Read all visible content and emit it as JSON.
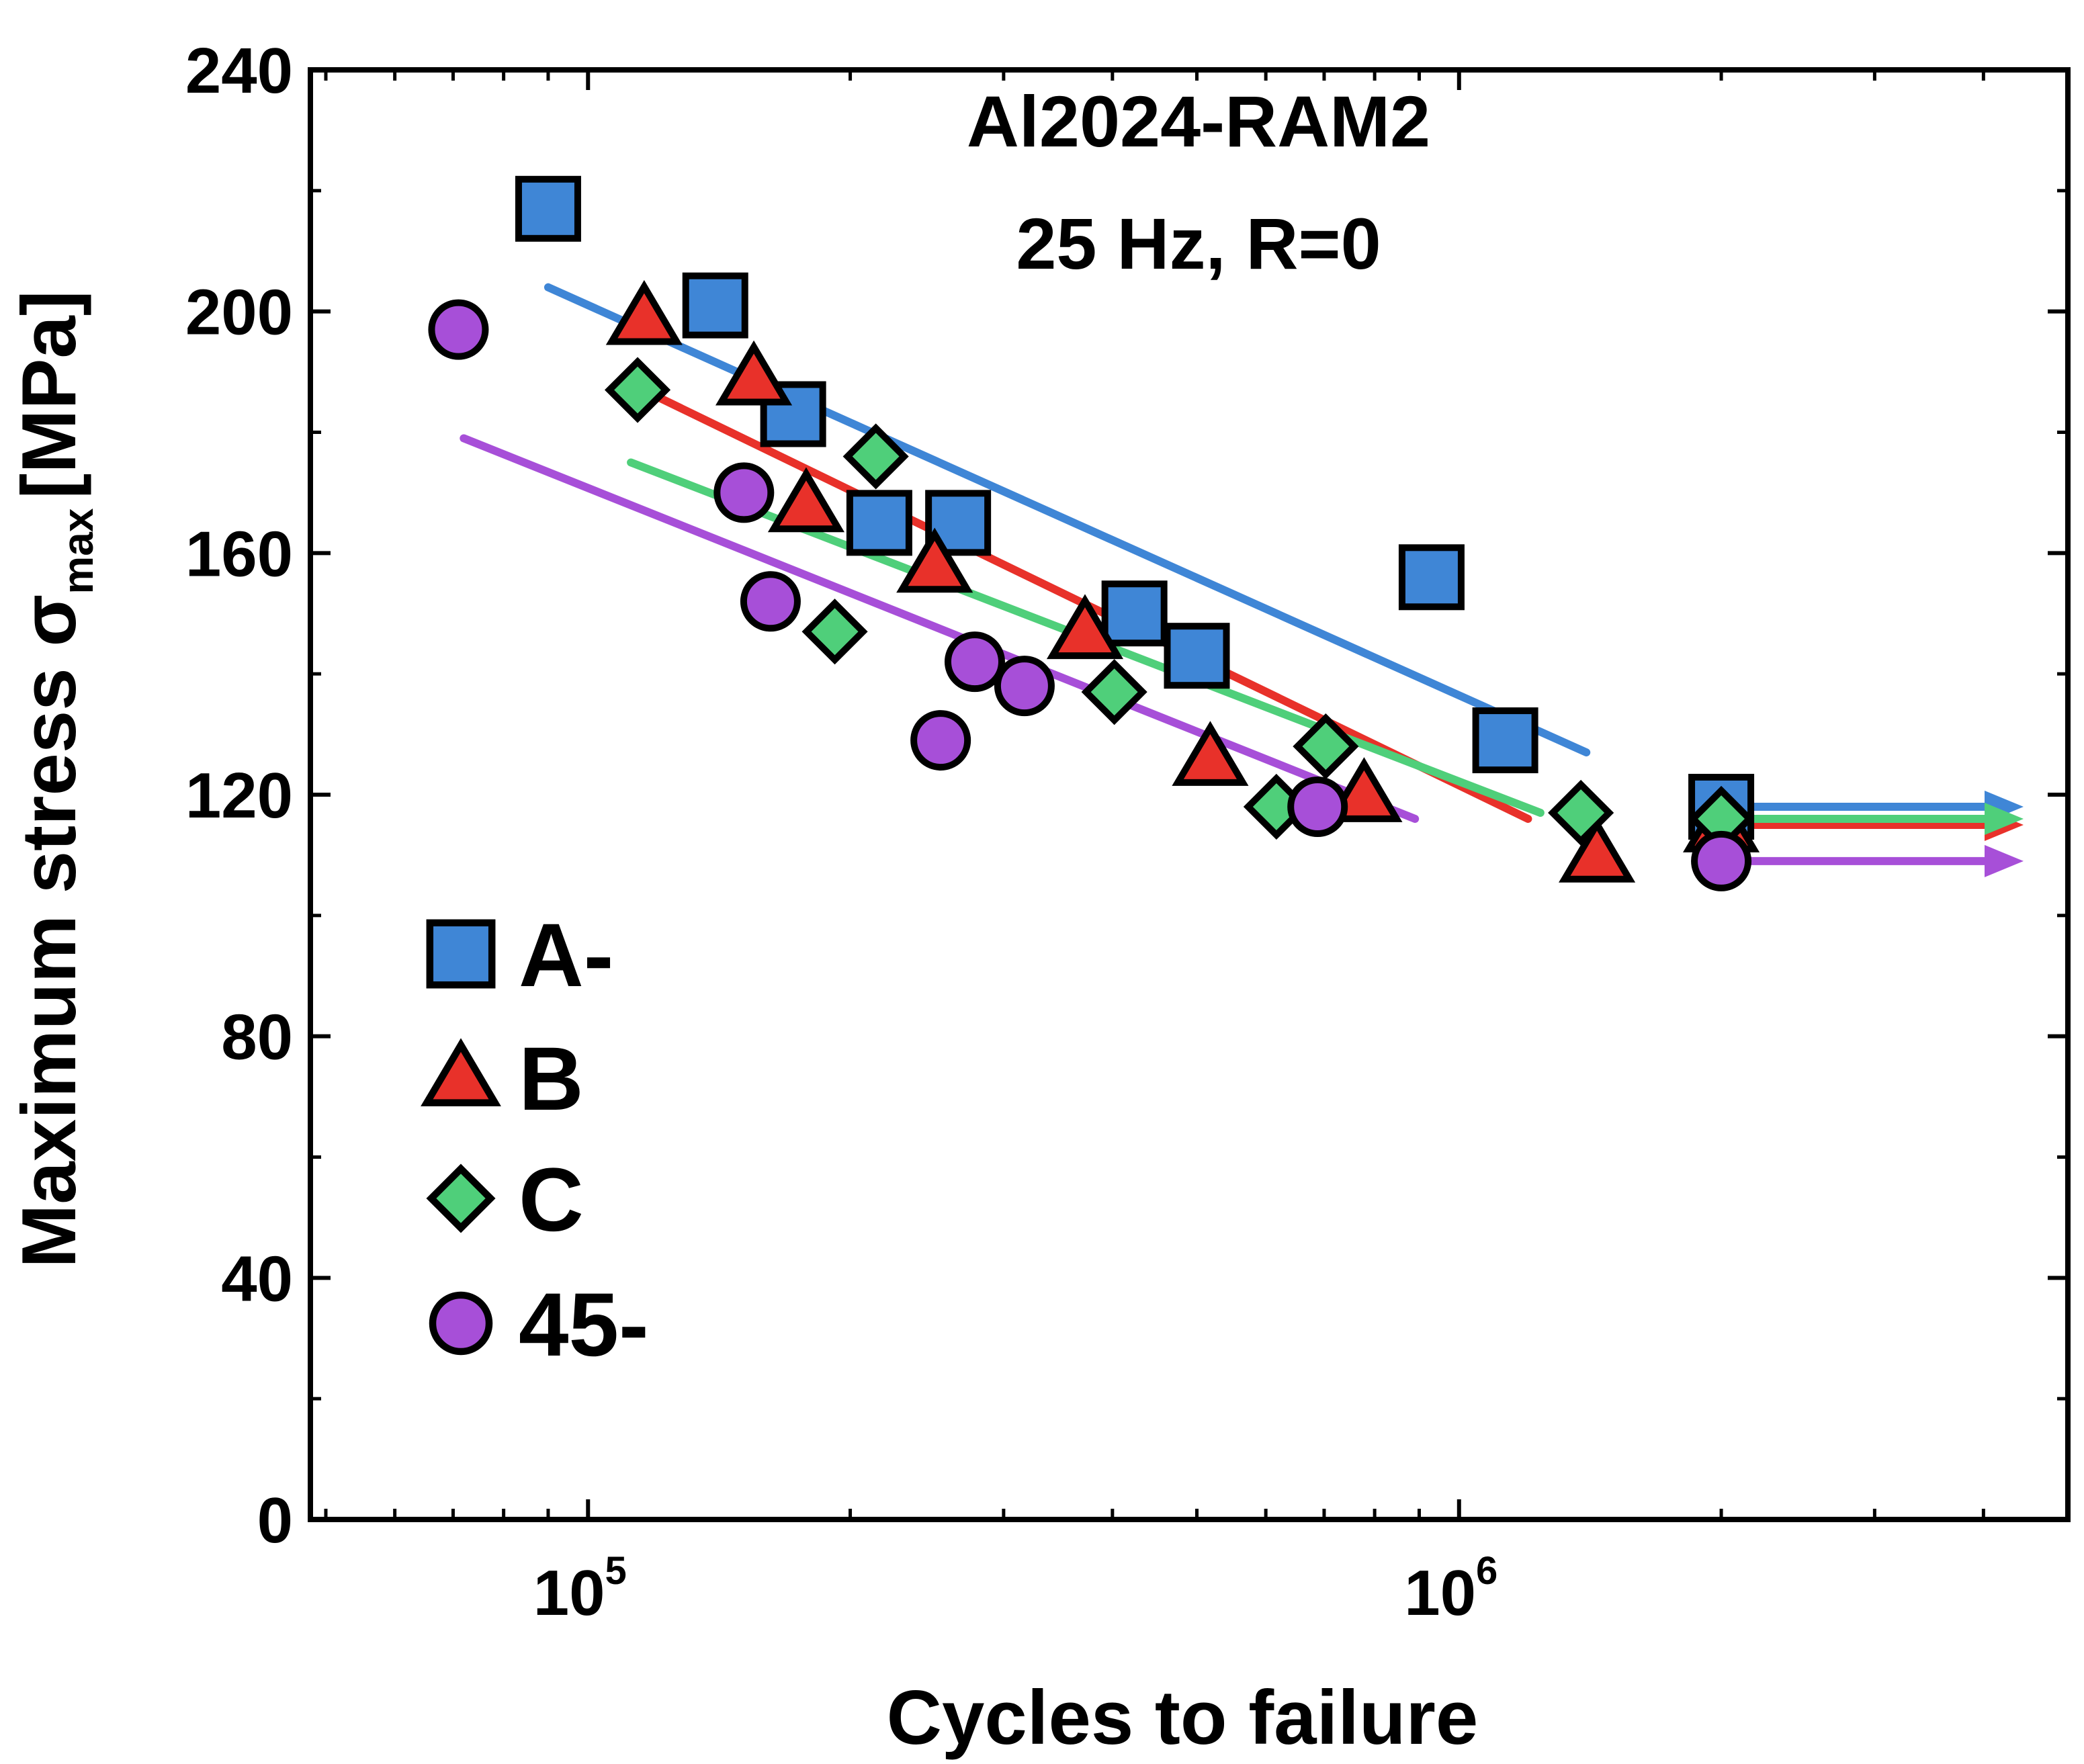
{
  "chart_data": {
    "type": "scatter",
    "title": "Al2024-RAM2",
    "subtitle": "25 Hz, R=0",
    "xlabel": "Cycles to failure",
    "ylabel": {
      "main": "Maximum stress σ",
      "sub": "max",
      "unit": "[MPa]"
    },
    "xscale": "log",
    "xlim": [
      48000,
      5000000
    ],
    "ylim": [
      0,
      240
    ],
    "x_ticks": [
      {
        "base": "10",
        "exp": "5"
      },
      {
        "base": "10",
        "exp": "6"
      }
    ],
    "y_ticks": [
      "0",
      "40",
      "80",
      "120",
      "160",
      "200",
      "240"
    ],
    "legend_position": "center-left",
    "series": [
      {
        "name": "A-",
        "marker": "square",
        "color": "#3f86d6",
        "points": [
          [
            90000,
            217
          ],
          [
            140000,
            201
          ],
          [
            172000,
            183
          ],
          [
            216000,
            165
          ],
          [
            266000,
            165
          ],
          [
            424000,
            150
          ],
          [
            500000,
            143
          ],
          [
            930000,
            156
          ],
          [
            1130000,
            129
          ]
        ],
        "runouts": [
          [
            2000000,
            118
          ]
        ],
        "fit": [
          [
            90000,
            204
          ],
          [
            1400000,
            127
          ]
        ]
      },
      {
        "name": "B",
        "marker": "triangle",
        "color": "#e8312a",
        "points": [
          [
            116000,
            199
          ],
          [
            155000,
            189
          ],
          [
            178000,
            168
          ],
          [
            250000,
            158
          ],
          [
            372000,
            147
          ],
          [
            518000,
            126
          ],
          [
            778000,
            120
          ],
          [
            1440000,
            110
          ]
        ],
        "runouts": [
          [
            2000000,
            115
          ]
        ],
        "fit": [
          [
            112000,
            188
          ],
          [
            1200000,
            116
          ]
        ]
      },
      {
        "name": "C",
        "marker": "diamond",
        "color": "#4fcf7a",
        "points": [
          [
            114000,
            187
          ],
          [
            214000,
            176
          ],
          [
            192000,
            147
          ],
          [
            402000,
            137
          ],
          [
            617000,
            118
          ],
          [
            703000,
            128
          ],
          [
            1380000,
            117
          ]
        ],
        "runouts": [
          [
            2000000,
            116
          ]
        ],
        "fit": [
          [
            112000,
            175
          ],
          [
            1240000,
            117
          ]
        ]
      },
      {
        "name": "45-",
        "marker": "circle",
        "color": "#a74fd8",
        "points": [
          [
            71000,
            197
          ],
          [
            151000,
            170
          ],
          [
            162000,
            152
          ],
          [
            254000,
            129
          ],
          [
            278000,
            142
          ],
          [
            317000,
            138
          ],
          [
            688000,
            118
          ],
          [
            2000000,
            109
          ]
        ],
        "runouts": [
          [
            2000000,
            109
          ]
        ],
        "fit": [
          [
            72000,
            179
          ],
          [
            890000,
            116
          ]
        ]
      }
    ]
  }
}
